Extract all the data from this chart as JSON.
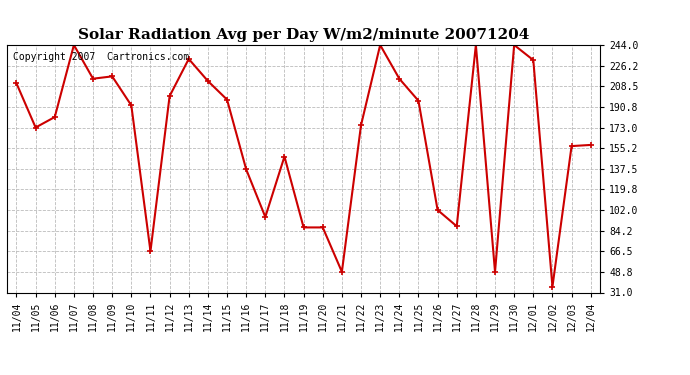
{
  "title": "Solar Radiation Avg per Day W/m2/minute 20071204",
  "copyright": "Copyright 2007  Cartronics.com",
  "x_labels": [
    "11/04",
    "11/05",
    "11/06",
    "11/07",
    "11/08",
    "11/09",
    "11/10",
    "11/11",
    "11/12",
    "11/13",
    "11/14",
    "11/15",
    "11/16",
    "11/17",
    "11/18",
    "11/19",
    "11/20",
    "11/21",
    "11/22",
    "11/23",
    "11/24",
    "11/25",
    "11/26",
    "11/27",
    "11/28",
    "11/29",
    "11/30",
    "12/01",
    "12/02",
    "12/03",
    "12/04"
  ],
  "y_values": [
    211.0,
    173.0,
    182.0,
    244.0,
    215.0,
    217.0,
    192.0,
    66.5,
    200.0,
    232.0,
    213.0,
    197.0,
    137.0,
    96.0,
    148.0,
    87.0,
    87.0,
    48.8,
    175.0,
    244.0,
    215.0,
    196.0,
    102.0,
    88.0,
    244.0,
    48.8,
    244.0,
    231.0,
    36.0,
    157.0,
    158.0
  ],
  "line_color": "#cc0000",
  "marker": "+",
  "marker_size": 5,
  "marker_linewidth": 1.2,
  "background_color": "#ffffff",
  "plot_bg_color": "#ffffff",
  "grid_color": "#bbbbbb",
  "yticks": [
    31.0,
    48.8,
    66.5,
    84.2,
    102.0,
    119.8,
    137.5,
    155.2,
    173.0,
    190.8,
    208.5,
    226.2,
    244.0
  ],
  "ylim": [
    31.0,
    244.0
  ],
  "title_fontsize": 11,
  "tick_fontsize": 7,
  "copyright_fontsize": 7
}
